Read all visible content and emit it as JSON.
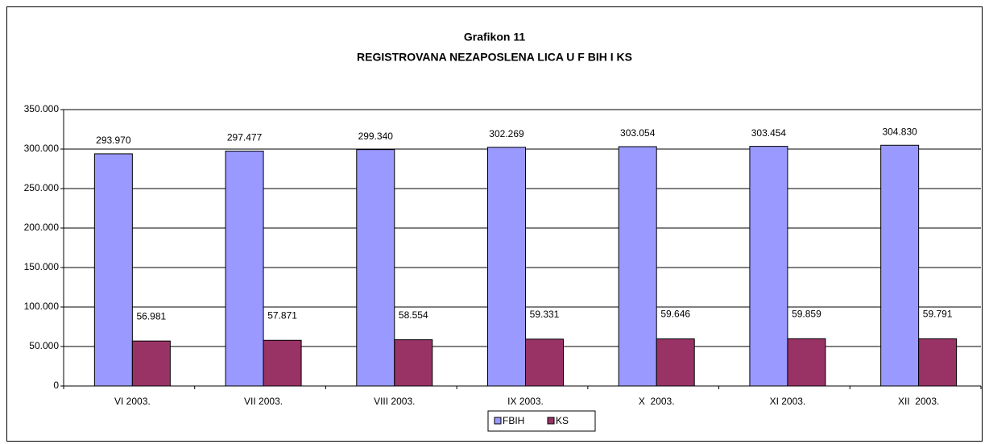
{
  "chart_data": {
    "type": "bar",
    "title": "Grafikon 11",
    "subtitle": "REGISTROVANA NEZAPOSLENA LICA U F BIH I KS",
    "categories": [
      "VI 2003.",
      "VII 2003.",
      "VIII 2003.",
      "IX 2003.",
      "X  2003.",
      "XI 2003.",
      "XII  2003."
    ],
    "series": [
      {
        "name": "FBIH",
        "color": "#9999ff",
        "values": [
          293970,
          297477,
          299340,
          302269,
          303054,
          303454,
          304830
        ],
        "value_labels": [
          "293.970",
          "297.477",
          "299.340",
          "302.269",
          "303.054",
          "303.454",
          "304.830"
        ]
      },
      {
        "name": "KS",
        "color": "#993366",
        "values": [
          56981,
          57871,
          58554,
          59331,
          59646,
          59859,
          59791
        ],
        "value_labels": [
          "56.981",
          "57.871",
          "58.554",
          "59.331",
          "59.646",
          "59.859",
          "59.791"
        ]
      }
    ],
    "ylim": [
      0,
      350000
    ],
    "yticks": [
      0,
      {
        "value": 50000,
        "label": "50.000"
      },
      {
        "value": 100000,
        "label": "100.000"
      },
      {
        "value": 150000,
        "label": "150.000"
      },
      {
        "value": 200000,
        "label": "200.000"
      },
      {
        "value": 250000,
        "label": "250.000"
      },
      {
        "value": 300000,
        "label": "300.000"
      },
      {
        "value": 350000,
        "label": "350.000"
      }
    ],
    "grid": true,
    "legend": "bottom"
  }
}
